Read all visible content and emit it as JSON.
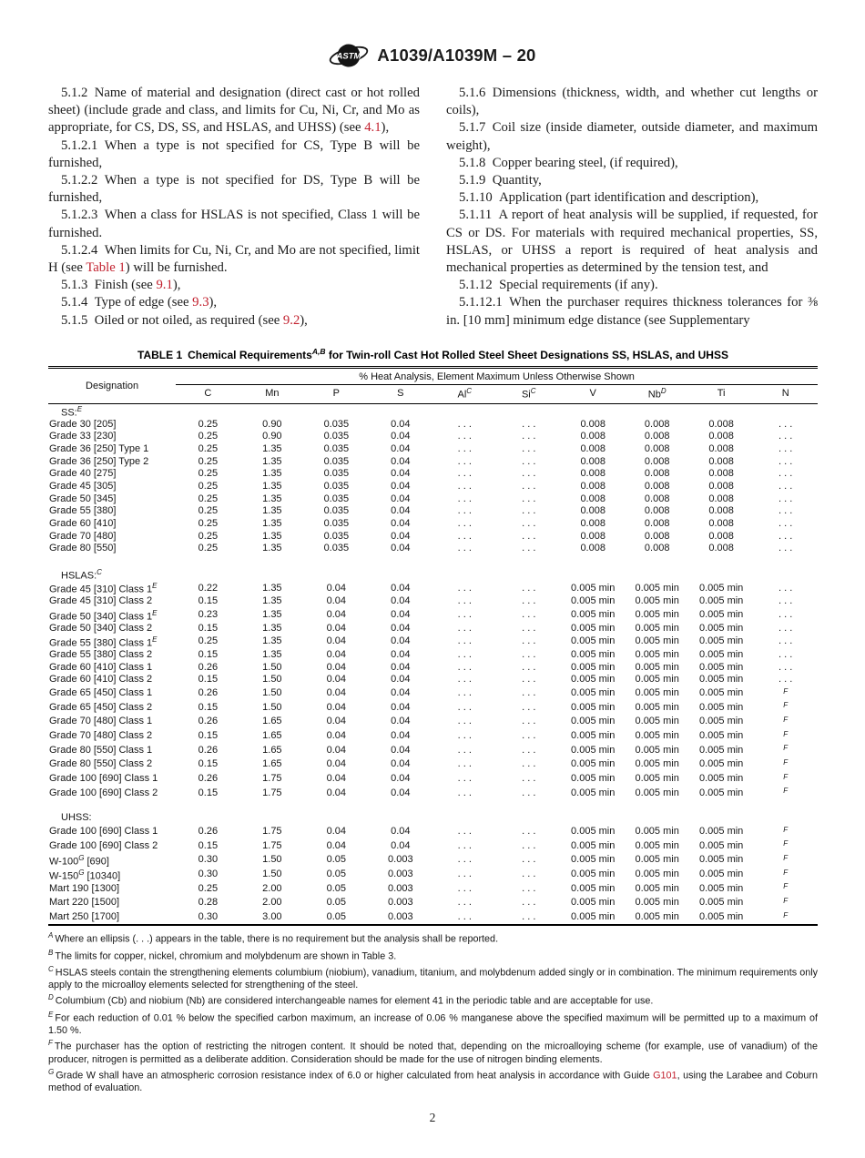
{
  "colors": {
    "accent_red": "#c2202e"
  },
  "header": {
    "designation": "A1039/A1039M – 20",
    "logo": "astm-logo"
  },
  "body": {
    "left": [
      [
        {
          "t": "5.1.2 Name of material and designation (direct cast or hot rolled sheet) (include grade and class, and limits for Cu, Ni, Cr, and Mo as appropriate, for CS, DS, SS, and HSLAS, and UHSS) (see "
        },
        {
          "t": "4.1",
          "link": true
        },
        {
          "t": "),"
        }
      ],
      [
        {
          "t": "5.1.2.1 When a type is not specified for CS, Type B will be furnished,"
        }
      ],
      [
        {
          "t": "5.1.2.2 When a type is not specified for DS, Type B will be furnished,"
        }
      ],
      [
        {
          "t": "5.1.2.3 When a class for HSLAS is not specified, Class 1 will be furnished."
        }
      ],
      [
        {
          "t": "5.1.2.4 When limits for Cu, Ni, Cr, and Mo are not specified, limit H (see "
        },
        {
          "t": "Table 1",
          "link": true
        },
        {
          "t": ") will be furnished."
        }
      ],
      [
        {
          "t": "5.1.3 Finish (see "
        },
        {
          "t": "9.1",
          "link": true
        },
        {
          "t": "),"
        }
      ],
      [
        {
          "t": "5.1.4 Type of edge (see "
        },
        {
          "t": "9.3",
          "link": true
        },
        {
          "t": "),"
        }
      ],
      [
        {
          "t": "5.1.5 Oiled or not oiled, as required (see "
        },
        {
          "t": "9.2",
          "link": true
        },
        {
          "t": "),"
        }
      ]
    ],
    "right": [
      [
        {
          "t": "5.1.6 Dimensions (thickness, width, and whether cut lengths or coils),"
        }
      ],
      [
        {
          "t": "5.1.7 Coil size (inside diameter, outside diameter, and maximum weight),"
        }
      ],
      [
        {
          "t": "5.1.8 Copper bearing steel, (if required),"
        }
      ],
      [
        {
          "t": "5.1.9 Quantity,"
        }
      ],
      [
        {
          "t": "5.1.10 Application (part identification and description),"
        }
      ],
      [
        {
          "t": "5.1.11 A report of heat analysis will be supplied, if requested, for CS or DS. For materials with required mechanical properties, SS, HSLAS, or UHSS a report is required of heat analysis and mechanical properties as determined by the tension test, and"
        }
      ],
      [
        {
          "t": "5.1.12 Special requirements (if any)."
        }
      ],
      [
        {
          "t": "5.1.12.1 When the purchaser requires thickness tolerances for ⅜ in. [10 mm] minimum edge distance (see Supplementary"
        }
      ]
    ]
  },
  "table": {
    "title_prefix": "TABLE 1 Chemical Requirements",
    "title_sup": "A,B",
    "title_suffix": " for Twin-roll Cast Hot Rolled Steel Sheet Designations SS, HSLAS, and UHSS",
    "designation_header": "Designation",
    "span_header": "% Heat Analysis, Element Maximum Unless Otherwise Shown",
    "columns": [
      {
        "label": "C",
        "sup": ""
      },
      {
        "label": "Mn",
        "sup": ""
      },
      {
        "label": "P",
        "sup": ""
      },
      {
        "label": "S",
        "sup": ""
      },
      {
        "label": "Al",
        "sup": "C"
      },
      {
        "label": "Si",
        "sup": "C"
      },
      {
        "label": "V",
        "sup": ""
      },
      {
        "label": "Nb",
        "sup": "D"
      },
      {
        "label": "Ti",
        "sup": ""
      },
      {
        "label": "N",
        "sup": ""
      }
    ],
    "sections": [
      {
        "label": "SS:",
        "sup": "E",
        "rows": [
          {
            "d": "Grade 30 [205]",
            "dsup": "",
            "d2": "",
            "v": [
              "0.25",
              "0.90",
              "0.035",
              "0.04",
              ". . .",
              ". . .",
              "0.008",
              "0.008",
              "0.008",
              ". . ."
            ]
          },
          {
            "d": "Grade 33 [230]",
            "dsup": "",
            "d2": "",
            "v": [
              "0.25",
              "0.90",
              "0.035",
              "0.04",
              ". . .",
              ". . .",
              "0.008",
              "0.008",
              "0.008",
              ". . ."
            ]
          },
          {
            "d": "Grade 36 [250] Type 1",
            "dsup": "",
            "d2": "",
            "v": [
              "0.25",
              "1.35",
              "0.035",
              "0.04",
              ". . .",
              ". . .",
              "0.008",
              "0.008",
              "0.008",
              ". . ."
            ]
          },
          {
            "d": "Grade 36 [250] Type 2",
            "dsup": "",
            "d2": "",
            "v": [
              "0.25",
              "1.35",
              "0.035",
              "0.04",
              ". . .",
              ". . .",
              "0.008",
              "0.008",
              "0.008",
              ". . ."
            ]
          },
          {
            "d": "Grade 40 [275]",
            "dsup": "",
            "d2": "",
            "v": [
              "0.25",
              "1.35",
              "0.035",
              "0.04",
              ". . .",
              ". . .",
              "0.008",
              "0.008",
              "0.008",
              ". . ."
            ]
          },
          {
            "d": "Grade 45 [305]",
            "dsup": "",
            "d2": "",
            "v": [
              "0.25",
              "1.35",
              "0.035",
              "0.04",
              ". . .",
              ". . .",
              "0.008",
              "0.008",
              "0.008",
              ". . ."
            ]
          },
          {
            "d": "Grade 50 [345]",
            "dsup": "",
            "d2": "",
            "v": [
              "0.25",
              "1.35",
              "0.035",
              "0.04",
              ". . .",
              ". . .",
              "0.008",
              "0.008",
              "0.008",
              ". . ."
            ]
          },
          {
            "d": "Grade 55 [380]",
            "dsup": "",
            "d2": "",
            "v": [
              "0.25",
              "1.35",
              "0.035",
              "0.04",
              ". . .",
              ". . .",
              "0.008",
              "0.008",
              "0.008",
              ". . ."
            ]
          },
          {
            "d": "Grade 60 [410]",
            "dsup": "",
            "d2": "",
            "v": [
              "0.25",
              "1.35",
              "0.035",
              "0.04",
              ". . .",
              ". . .",
              "0.008",
              "0.008",
              "0.008",
              ". . ."
            ]
          },
          {
            "d": "Grade 70 [480]",
            "dsup": "",
            "d2": "",
            "v": [
              "0.25",
              "1.35",
              "0.035",
              "0.04",
              ". . .",
              ". . .",
              "0.008",
              "0.008",
              "0.008",
              ". . ."
            ]
          },
          {
            "d": "Grade 80 [550]",
            "dsup": "",
            "d2": "",
            "v": [
              "0.25",
              "1.35",
              "0.035",
              "0.04",
              ". . .",
              ". . .",
              "0.008",
              "0.008",
              "0.008",
              ". . ."
            ]
          }
        ]
      },
      {
        "label": "HSLAS:",
        "sup": "C",
        "rows": [
          {
            "d": "Grade 45 [310] Class 1",
            "dsup": "E",
            "d2": "",
            "v": [
              "0.22",
              "1.35",
              "0.04",
              "0.04",
              ". . .",
              ". . .",
              "0.005 min",
              "0.005 min",
              "0.005 min",
              ". . ."
            ]
          },
          {
            "d": "Grade 45 [310] Class 2",
            "dsup": "",
            "d2": "",
            "v": [
              "0.15",
              "1.35",
              "0.04",
              "0.04",
              ". . .",
              ". . .",
              "0.005 min",
              "0.005 min",
              "0.005 min",
              ". . ."
            ]
          },
          {
            "d": "Grade 50 [340] Class 1",
            "dsup": "E",
            "d2": "",
            "v": [
              "0.23",
              "1.35",
              "0.04",
              "0.04",
              ". . .",
              ". . .",
              "0.005 min",
              "0.005 min",
              "0.005 min",
              ". . ."
            ]
          },
          {
            "d": "Grade 50 [340] Class 2",
            "dsup": "",
            "d2": "",
            "v": [
              "0.15",
              "1.35",
              "0.04",
              "0.04",
              ". . .",
              ". . .",
              "0.005 min",
              "0.005 min",
              "0.005 min",
              ". . ."
            ]
          },
          {
            "d": "Grade 55 [380] Class 1",
            "dsup": "E",
            "d2": "",
            "v": [
              "0.25",
              "1.35",
              "0.04",
              "0.04",
              ". . .",
              ". . .",
              "0.005 min",
              "0.005 min",
              "0.005 min",
              ". . ."
            ]
          },
          {
            "d": "Grade 55 [380] Class 2",
            "dsup": "",
            "d2": "",
            "v": [
              "0.15",
              "1.35",
              "0.04",
              "0.04",
              ". . .",
              ". . .",
              "0.005 min",
              "0.005 min",
              "0.005 min",
              ". . ."
            ]
          },
          {
            "d": "Grade 60 [410] Class 1",
            "dsup": "",
            "d2": "",
            "v": [
              "0.26",
              "1.50",
              "0.04",
              "0.04",
              ". . .",
              ". . .",
              "0.005 min",
              "0.005 min",
              "0.005 min",
              ". . ."
            ]
          },
          {
            "d": "Grade 60 [410] Class 2",
            "dsup": "",
            "d2": "",
            "v": [
              "0.15",
              "1.50",
              "0.04",
              "0.04",
              ". . .",
              ". . .",
              "0.005 min",
              "0.005 min",
              "0.005 min",
              ". . ."
            ]
          },
          {
            "d": "Grade 65 [450] Class 1",
            "dsup": "",
            "d2": "",
            "v": [
              "0.26",
              "1.50",
              "0.04",
              "0.04",
              ". . .",
              ". . .",
              "0.005 min",
              "0.005 min",
              "0.005 min",
              "^F"
            ]
          },
          {
            "d": "Grade 65 [450] Class 2",
            "dsup": "",
            "d2": "",
            "v": [
              "0.15",
              "1.50",
              "0.04",
              "0.04",
              ". . .",
              ". . .",
              "0.005 min",
              "0.005 min",
              "0.005 min",
              "^F"
            ]
          },
          {
            "d": "Grade 70 [480] Class 1",
            "dsup": "",
            "d2": "",
            "v": [
              "0.26",
              "1.65",
              "0.04",
              "0.04",
              ". . .",
              ". . .",
              "0.005 min",
              "0.005 min",
              "0.005 min",
              "^F"
            ]
          },
          {
            "d": "Grade 70 [480] Class 2",
            "dsup": "",
            "d2": "",
            "v": [
              "0.15",
              "1.65",
              "0.04",
              "0.04",
              ". . .",
              ". . .",
              "0.005 min",
              "0.005 min",
              "0.005 min",
              "^F"
            ]
          },
          {
            "d": "Grade 80 [550] Class 1",
            "dsup": "",
            "d2": "",
            "v": [
              "0.26",
              "1.65",
              "0.04",
              "0.04",
              ". . .",
              ". . .",
              "0.005 min",
              "0.005 min",
              "0.005 min",
              "^F"
            ]
          },
          {
            "d": "Grade 80 [550] Class 2",
            "dsup": "",
            "d2": "",
            "v": [
              "0.15",
              "1.65",
              "0.04",
              "0.04",
              ". . .",
              ". . .",
              "0.005 min",
              "0.005 min",
              "0.005 min",
              "^F"
            ]
          },
          {
            "d": "Grade 100 [690] Class 1",
            "dsup": "",
            "d2": "",
            "v": [
              "0.26",
              "1.75",
              "0.04",
              "0.04",
              ". . .",
              ". . .",
              "0.005 min",
              "0.005 min",
              "0.005 min",
              "^F"
            ]
          },
          {
            "d": "Grade 100 [690] Class 2",
            "dsup": "",
            "d2": "",
            "v": [
              "0.15",
              "1.75",
              "0.04",
              "0.04",
              ". . .",
              ". . .",
              "0.005 min",
              "0.005 min",
              "0.005 min",
              "^F"
            ]
          }
        ]
      },
      {
        "label": "UHSS:",
        "sup": "",
        "rows": [
          {
            "d": "Grade 100 [690] Class 1",
            "dsup": "",
            "d2": "",
            "v": [
              "0.26",
              "1.75",
              "0.04",
              "0.04",
              ". . .",
              ". . .",
              "0.005 min",
              "0.005 min",
              "0.005 min",
              "^F"
            ]
          },
          {
            "d": "Grade 100 [690] Class 2",
            "dsup": "",
            "d2": "",
            "v": [
              "0.15",
              "1.75",
              "0.04",
              "0.04",
              ". . .",
              ". . .",
              "0.005 min",
              "0.005 min",
              "0.005 min",
              "^F"
            ]
          },
          {
            "d": "W-100",
            "dsup": "G",
            "d2": " [690]",
            "v": [
              "0.30",
              "1.50",
              "0.05",
              "0.003",
              ". . .",
              ". . .",
              "0.005 min",
              "0.005 min",
              "0.005 min",
              "^F"
            ]
          },
          {
            "d": "W-150",
            "dsup": "G",
            "d2": " [10340]",
            "v": [
              "0.30",
              "1.50",
              "0.05",
              "0.003",
              ". . .",
              ". . .",
              "0.005 min",
              "0.005 min",
              "0.005 min",
              "^F"
            ]
          },
          {
            "d": "Mart 190 [1300]",
            "dsup": "",
            "d2": "",
            "v": [
              "0.25",
              "2.00",
              "0.05",
              "0.003",
              ". . .",
              ". . .",
              "0.005 min",
              "0.005 min",
              "0.005 min",
              "^F"
            ]
          },
          {
            "d": "Mart 220 [1500]",
            "dsup": "",
            "d2": "",
            "v": [
              "0.28",
              "2.00",
              "0.05",
              "0.003",
              ". . .",
              ". . .",
              "0.005 min",
              "0.005 min",
              "0.005 min",
              "^F"
            ]
          },
          {
            "d": "Mart 250 [1700]",
            "dsup": "",
            "d2": "",
            "v": [
              "0.30",
              "3.00",
              "0.05",
              "0.003",
              ". . .",
              ". . .",
              "0.005 min",
              "0.005 min",
              "0.005 min",
              "^F"
            ]
          }
        ]
      }
    ]
  },
  "footnotes": [
    {
      "sup": "A",
      "segments": [
        {
          "t": "Where an ellipsis (. . .) appears in the table, there is no requirement but the analysis shall be reported."
        }
      ]
    },
    {
      "sup": "B",
      "segments": [
        {
          "t": "The limits for copper, nickel, chromium and molybdenum are shown in Table 3."
        }
      ]
    },
    {
      "sup": "C",
      "segments": [
        {
          "t": "HSLAS steels contain the strengthening elements columbium (niobium), vanadium, titanium, and molybdenum added singly or in combination. The minimum requirements only apply to the microalloy elements selected for strengthening of the steel."
        }
      ]
    },
    {
      "sup": "D",
      "segments": [
        {
          "t": "Columbium (Cb) and niobium (Nb) are considered interchangeable names for element 41 in the periodic table and are acceptable for use."
        }
      ]
    },
    {
      "sup": "E",
      "segments": [
        {
          "t": "For each reduction of 0.01 % below the specified carbon maximum, an increase of 0.06 % manganese above the specified maximum will be permitted up to a maximum of 1.50 %."
        }
      ]
    },
    {
      "sup": "F",
      "segments": [
        {
          "t": "The purchaser has the option of restricting the nitrogen content. It should be noted that, depending on the microalloying scheme (for example, use of vanadium) of the producer, nitrogen is permitted as a deliberate addition. Consideration should be made for the use of nitrogen binding elements."
        }
      ]
    },
    {
      "sup": "G",
      "segments": [
        {
          "t": "Grade W shall have an atmospheric corrosion resistance index of 6.0 or higher calculated from heat analysis in accordance with Guide "
        },
        {
          "t": "G101",
          "link": true
        },
        {
          "t": ", using the Larabee and Coburn method of evaluation."
        }
      ]
    }
  ],
  "page": {
    "number": "2"
  }
}
